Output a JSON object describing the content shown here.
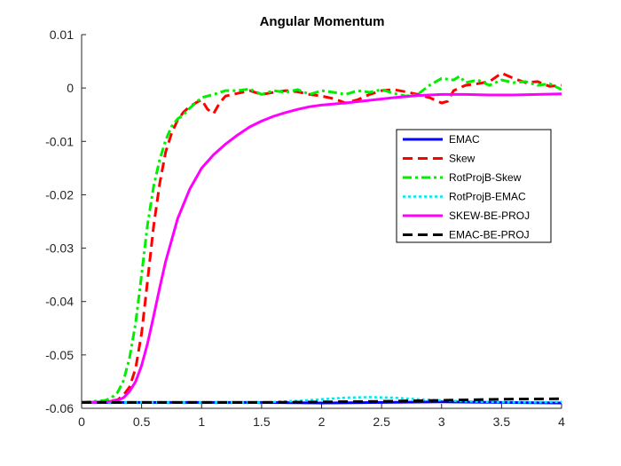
{
  "chart_data": {
    "type": "line",
    "title": "Angular Momentum",
    "xlabel": "",
    "ylabel": "",
    "xlim": [
      0,
      4
    ],
    "ylim": [
      -0.06,
      0.01
    ],
    "xticks": [
      0,
      0.5,
      1,
      1.5,
      2,
      2.5,
      3,
      3.5,
      4
    ],
    "xtick_labels": [
      "0",
      "0.5",
      "1",
      "1.5",
      "2",
      "2.5",
      "3",
      "3.5",
      "4"
    ],
    "yticks": [
      0.01,
      0,
      -0.01,
      -0.02,
      -0.03,
      -0.04,
      -0.05,
      -0.06
    ],
    "ytick_labels": [
      "0.01",
      "0",
      "-0.01",
      "-0.02",
      "-0.03",
      "-0.04",
      "-0.05",
      "-0.06"
    ],
    "grid": false,
    "legend_position": "upper-right",
    "series": [
      {
        "name": "EMAC",
        "color": "#0000ff",
        "style": "solid",
        "x": [
          0,
          0.5,
          1,
          1.5,
          2,
          2.5,
          3,
          3.5,
          4
        ],
        "y": [
          -0.0589,
          -0.0589,
          -0.0589,
          -0.0589,
          -0.059,
          -0.0589,
          -0.0588,
          -0.0589,
          -0.059
        ]
      },
      {
        "name": "Skew",
        "color": "#ff0000",
        "style": "dashed",
        "x": [
          0,
          0.2,
          0.3,
          0.35,
          0.4,
          0.45,
          0.5,
          0.55,
          0.6,
          0.65,
          0.7,
          0.75,
          0.8,
          0.85,
          0.9,
          0.95,
          1.0,
          1.05,
          1.1,
          1.15,
          1.2,
          1.3,
          1.4,
          1.5,
          1.6,
          1.7,
          1.8,
          1.9,
          2.0,
          2.1,
          2.2,
          2.3,
          2.4,
          2.5,
          2.6,
          2.7,
          2.8,
          2.9,
          3.0,
          3.05,
          3.1,
          3.2,
          3.3,
          3.4,
          3.5,
          3.6,
          3.7,
          3.8,
          3.9,
          4.0
        ],
        "y": [
          -0.0589,
          -0.0588,
          -0.0584,
          -0.0575,
          -0.056,
          -0.0525,
          -0.046,
          -0.036,
          -0.026,
          -0.018,
          -0.012,
          -0.0085,
          -0.006,
          -0.0045,
          -0.0035,
          -0.0028,
          -0.0022,
          -0.004,
          -0.0048,
          -0.0028,
          -0.0015,
          -0.001,
          -0.0005,
          -0.0012,
          -0.0008,
          -0.0005,
          -0.0007,
          -0.0012,
          -0.0015,
          -0.002,
          -0.0028,
          -0.0022,
          -0.0012,
          -0.0005,
          -0.0003,
          -0.0007,
          -0.0012,
          -0.0018,
          -0.0028,
          -0.0025,
          -0.0005,
          0.0005,
          0.0008,
          0.0012,
          0.0028,
          0.0018,
          0.001,
          0.0012,
          0.0003,
          0.0005
        ]
      },
      {
        "name": "RotProjB-Skew",
        "color": "#00ee00",
        "style": "dashdot",
        "x": [
          0,
          0.2,
          0.25,
          0.3,
          0.35,
          0.4,
          0.45,
          0.5,
          0.55,
          0.6,
          0.65,
          0.7,
          0.75,
          0.8,
          0.85,
          0.9,
          0.95,
          1.0,
          1.1,
          1.2,
          1.3,
          1.4,
          1.5,
          1.6,
          1.7,
          1.8,
          1.9,
          2.0,
          2.1,
          2.2,
          2.3,
          2.4,
          2.5,
          2.6,
          2.7,
          2.8,
          2.9,
          3.0,
          3.1,
          3.15,
          3.2,
          3.3,
          3.4,
          3.5,
          3.6,
          3.7,
          3.8,
          3.9,
          4.0
        ],
        "y": [
          -0.0589,
          -0.0585,
          -0.058,
          -0.057,
          -0.0548,
          -0.0505,
          -0.044,
          -0.035,
          -0.0255,
          -0.0185,
          -0.0135,
          -0.0098,
          -0.0072,
          -0.0058,
          -0.005,
          -0.0038,
          -0.0028,
          -0.0018,
          -0.0012,
          -0.0005,
          -0.0005,
          -0.0002,
          -0.0012,
          -0.0005,
          -0.0008,
          -0.0003,
          -0.0012,
          -0.0005,
          -0.0008,
          -0.0012,
          -0.0005,
          -0.0008,
          -0.0003,
          -0.001,
          -0.0015,
          -0.0012,
          0.0005,
          0.0018,
          0.0015,
          0.0022,
          0.001,
          0.0015,
          0.0005,
          0.0015,
          0.001,
          0.0012,
          0.0005,
          0.0008,
          -0.0003
        ]
      },
      {
        "name": "RotProjB-EMAC",
        "color": "#00e5ee",
        "style": "dotted",
        "x": [
          0,
          0.5,
          1,
          1.5,
          1.8,
          2.0,
          2.2,
          2.4,
          2.6,
          2.8,
          3.0,
          3.2,
          3.4,
          3.6,
          3.8,
          4.0
        ],
        "y": [
          -0.0589,
          -0.0589,
          -0.0589,
          -0.0589,
          -0.0586,
          -0.0583,
          -0.058,
          -0.0579,
          -0.058,
          -0.0583,
          -0.0585,
          -0.0587,
          -0.0588,
          -0.0589,
          -0.0589,
          -0.0588
        ]
      },
      {
        "name": "SKEW-BE-PROJ",
        "color": "#ff00ff",
        "style": "solid",
        "x": [
          0,
          0.2,
          0.3,
          0.35,
          0.4,
          0.45,
          0.5,
          0.55,
          0.6,
          0.65,
          0.7,
          0.8,
          0.9,
          1.0,
          1.1,
          1.2,
          1.3,
          1.4,
          1.5,
          1.6,
          1.7,
          1.8,
          1.9,
          2.0,
          2.2,
          2.4,
          2.6,
          2.8,
          3.0,
          3.2,
          3.4,
          3.6,
          3.8,
          4.0
        ],
        "y": [
          -0.0589,
          -0.0588,
          -0.0585,
          -0.058,
          -0.0568,
          -0.055,
          -0.052,
          -0.0478,
          -0.0428,
          -0.0375,
          -0.0325,
          -0.0245,
          -0.019,
          -0.015,
          -0.0125,
          -0.0105,
          -0.0088,
          -0.0073,
          -0.0062,
          -0.0053,
          -0.0046,
          -0.004,
          -0.0035,
          -0.0032,
          -0.0028,
          -0.0023,
          -0.0018,
          -0.0014,
          -0.0012,
          -0.0012,
          -0.0013,
          -0.0013,
          -0.0012,
          -0.0011
        ]
      },
      {
        "name": "EMAC-BE-PROJ",
        "color": "#000000",
        "style": "dashed",
        "x": [
          0,
          0.5,
          1,
          1.5,
          2,
          2.5,
          3,
          3.5,
          4
        ],
        "y": [
          -0.0589,
          -0.0589,
          -0.0589,
          -0.0589,
          -0.0588,
          -0.0587,
          -0.0585,
          -0.0583,
          -0.0582
        ]
      }
    ]
  }
}
